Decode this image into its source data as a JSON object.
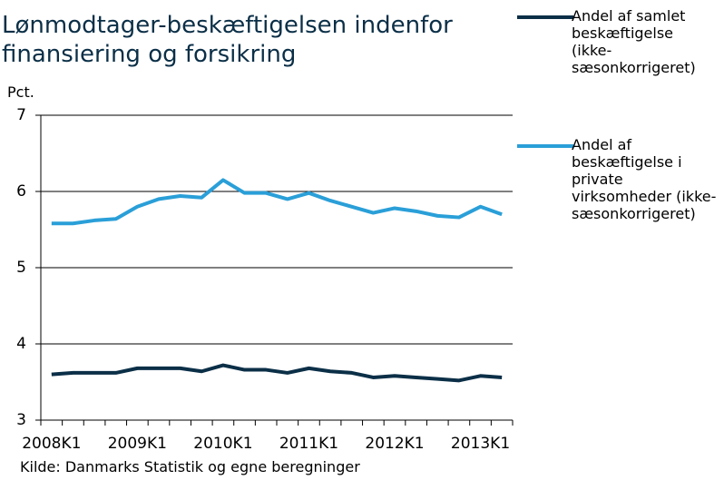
{
  "chart_data": {
    "type": "line",
    "title": "Lønmodtager-beskæftigelsen indenfor finansiering og forsikring",
    "y_label": "Pct.",
    "source": "Kilde: Danmarks Statistik og egne beregninger",
    "categories": [
      "2008K1",
      null,
      null,
      null,
      "2009K1",
      null,
      null,
      null,
      "2010K1",
      null,
      null,
      null,
      "2011K1",
      null,
      null,
      null,
      "2012K1",
      null,
      null,
      null,
      "2013K1",
      null
    ],
    "series": [
      {
        "name": "Andel af samlet beskæftigelse (ikke-sæsonkorrigeret)",
        "color": "#0b2f47",
        "values": [
          3.6,
          3.62,
          3.62,
          3.62,
          3.68,
          3.68,
          3.68,
          3.64,
          3.72,
          3.66,
          3.66,
          3.62,
          3.68,
          3.64,
          3.62,
          3.56,
          3.58,
          3.56,
          3.54,
          3.52,
          3.58,
          3.56
        ]
      },
      {
        "name": "Andel af beskæftigelse i private virksomheder (ikke-sæsonkorrigeret)",
        "color": "#2a9fd8",
        "values": [
          5.58,
          5.58,
          5.62,
          5.64,
          5.8,
          5.9,
          5.94,
          5.92,
          6.15,
          5.98,
          5.98,
          5.9,
          5.98,
          5.88,
          5.8,
          5.72,
          5.78,
          5.74,
          5.68,
          5.66,
          5.8,
          5.7
        ]
      }
    ],
    "ylim": [
      3,
      7
    ],
    "yticks": [
      3,
      4,
      5,
      6,
      7
    ],
    "grid": true,
    "legend": "right"
  }
}
